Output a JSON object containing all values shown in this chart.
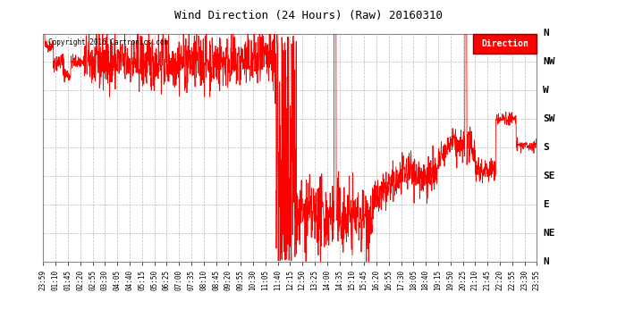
{
  "title": "Wind Direction (24 Hours) (Raw) 20160310",
  "copyright_text": "Copyright 2016 Cartronics.com",
  "legend_label": "Direction",
  "legend_bg": "#FF0000",
  "legend_text_color": "#FFFFFF",
  "line_color": "#FF0000",
  "bg_color": "#FFFFFF",
  "grid_color": "#AAAAAA",
  "ytick_positions": [
    360,
    315,
    270,
    225,
    180,
    135,
    90,
    45,
    0
  ],
  "ytick_labels": [
    "N",
    "NW",
    "W",
    "SW",
    "S",
    "SE",
    "E",
    "NE",
    "N"
  ],
  "xtick_labels": [
    "23:59",
    "01:10",
    "01:45",
    "02:20",
    "02:55",
    "03:30",
    "04:05",
    "04:40",
    "05:15",
    "05:50",
    "06:25",
    "07:00",
    "07:35",
    "08:10",
    "08:45",
    "09:20",
    "09:55",
    "10:30",
    "11:05",
    "11:40",
    "12:15",
    "12:50",
    "13:25",
    "14:00",
    "14:35",
    "15:10",
    "15:45",
    "16:20",
    "16:55",
    "17:30",
    "18:05",
    "18:40",
    "19:15",
    "19:50",
    "20:25",
    "21:10",
    "21:45",
    "22:20",
    "22:55",
    "23:30",
    "23:55"
  ],
  "seed": 42,
  "n_points": 2000,
  "total_minutes": 1440
}
